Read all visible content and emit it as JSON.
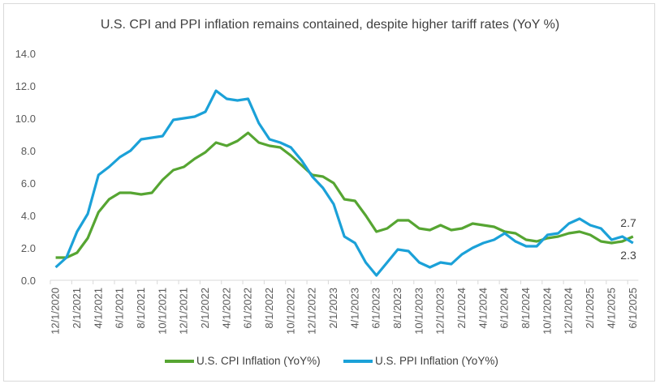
{
  "chart_data": {
    "type": "line",
    "title": "U.S. CPI and PPI inflation remains contained, despite higher tariff rates (YoY %)",
    "xlabel": "",
    "ylabel": "",
    "ylim": [
      0,
      14
    ],
    "yticks": [
      "0.0",
      "2.0",
      "4.0",
      "6.0",
      "8.0",
      "10.0",
      "12.0",
      "14.0"
    ],
    "grid": false,
    "legend_position": "bottom",
    "x": [
      "12/1/2020",
      "1/1/2021",
      "2/1/2021",
      "3/1/2021",
      "4/1/2021",
      "5/1/2021",
      "6/1/2021",
      "7/1/2021",
      "8/1/2021",
      "9/1/2021",
      "10/1/2021",
      "11/1/2021",
      "12/1/2021",
      "1/1/2022",
      "2/1/2022",
      "3/1/2022",
      "4/1/2022",
      "5/1/2022",
      "6/1/2022",
      "7/1/2022",
      "8/1/2022",
      "9/1/2022",
      "10/1/2022",
      "11/1/2022",
      "12/1/2022",
      "1/1/2023",
      "2/1/2023",
      "3/1/2023",
      "4/1/2023",
      "5/1/2023",
      "6/1/2023",
      "7/1/2023",
      "8/1/2023",
      "9/1/2023",
      "10/1/2023",
      "11/1/2023",
      "12/1/2023",
      "1/1/2024",
      "2/1/2024",
      "3/1/2024",
      "4/1/2024",
      "5/1/2024",
      "6/1/2024",
      "7/1/2024",
      "8/1/2024",
      "9/1/2024",
      "10/1/2024",
      "11/1/2024",
      "12/1/2024",
      "1/1/2025",
      "2/1/2025",
      "3/1/2025",
      "4/1/2025",
      "5/1/2025",
      "6/1/2025"
    ],
    "series": [
      {
        "name": "U.S. CPI Inflation (YoY%)",
        "color": "#56a532",
        "end_label": "2.7",
        "values": [
          1.4,
          1.4,
          1.7,
          2.6,
          4.2,
          5.0,
          5.4,
          5.4,
          5.3,
          5.4,
          6.2,
          6.8,
          7.0,
          7.5,
          7.9,
          8.5,
          8.3,
          8.6,
          9.1,
          8.5,
          8.3,
          8.2,
          7.7,
          7.1,
          6.5,
          6.4,
          6.0,
          5.0,
          4.9,
          4.0,
          3.0,
          3.2,
          3.7,
          3.7,
          3.2,
          3.1,
          3.4,
          3.1,
          3.2,
          3.5,
          3.4,
          3.3,
          3.0,
          2.9,
          2.5,
          2.4,
          2.6,
          2.7,
          2.9,
          3.0,
          2.8,
          2.4,
          2.3,
          2.4,
          2.7
        ]
      },
      {
        "name": "U.S. PPI Inflation (YoY%)",
        "color": "#1ba1d8",
        "end_label": "2.3",
        "values": [
          0.8,
          1.4,
          3.0,
          4.1,
          6.5,
          7.0,
          7.6,
          8.0,
          8.7,
          8.8,
          8.9,
          9.9,
          10.0,
          10.1,
          10.4,
          11.7,
          11.2,
          11.1,
          11.2,
          9.7,
          8.7,
          8.5,
          8.2,
          7.4,
          6.4,
          5.7,
          4.7,
          2.7,
          2.3,
          1.1,
          0.3,
          1.1,
          1.9,
          1.8,
          1.1,
          0.8,
          1.1,
          1.0,
          1.6,
          2.0,
          2.3,
          2.5,
          2.9,
          2.4,
          2.1,
          2.1,
          2.8,
          2.9,
          3.5,
          3.8,
          3.4,
          3.2,
          2.5,
          2.7,
          2.3
        ]
      }
    ]
  }
}
